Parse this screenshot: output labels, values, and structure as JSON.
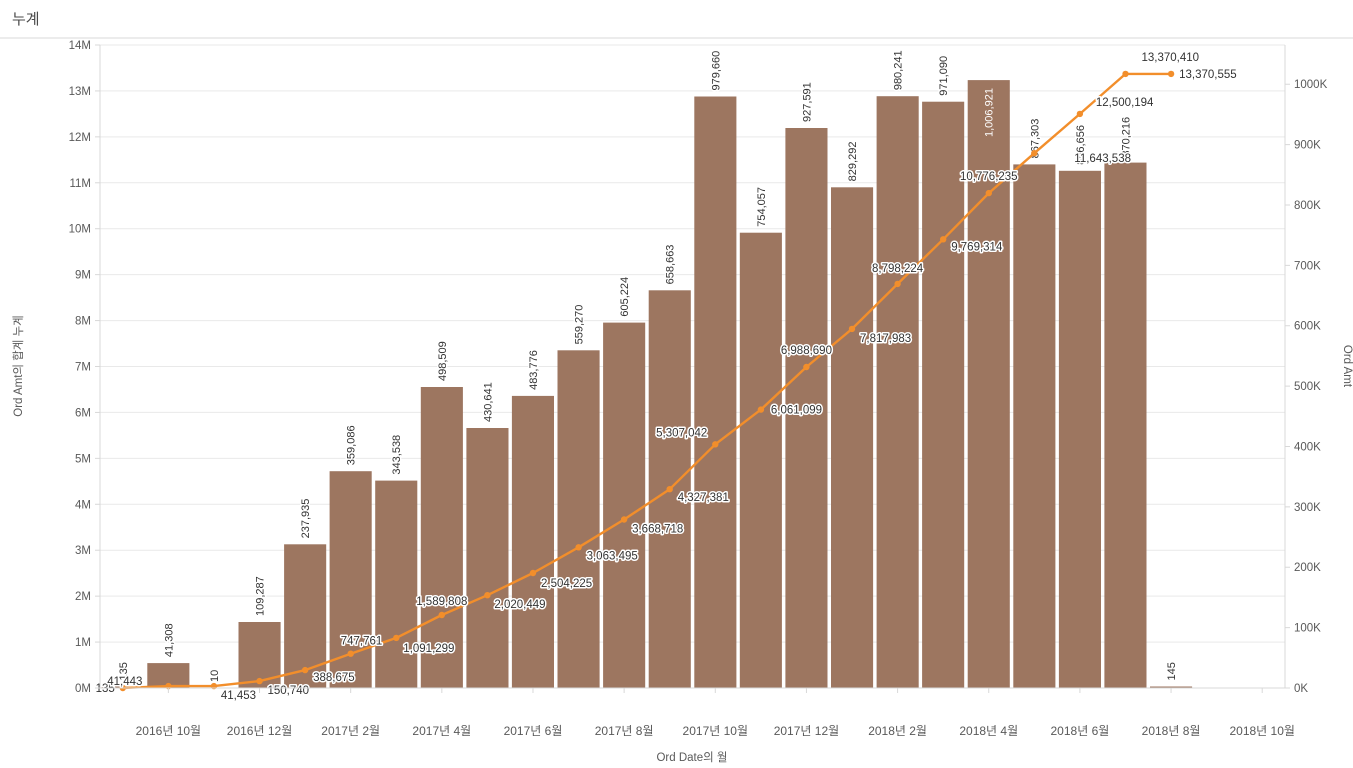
{
  "title": "누계",
  "chart_data": {
    "type": "combo",
    "title": "누계",
    "grid": true,
    "legend": false,
    "x_axis": {
      "label": "Ord Date의 월",
      "tick_labels": [
        "2016년 10월",
        "2016년 12월",
        "2017년 2월",
        "2017년 4월",
        "2017년 6월",
        "2017년 8월",
        "2017년 10월",
        "2017년 12월",
        "2018년 2월",
        "2018년 4월",
        "2018년 6월",
        "2018년 8월",
        "2018년 10월"
      ],
      "tick_month_indices": [
        1,
        3,
        5,
        7,
        9,
        11,
        13,
        15,
        17,
        19,
        21,
        23,
        25
      ],
      "total_month_slots": 26
    },
    "left_axis": {
      "label": "Ord Amt의 합계 누계",
      "tick_labels": [
        "0M",
        "1M",
        "2M",
        "3M",
        "4M",
        "5M",
        "6M",
        "7M",
        "8M",
        "9M",
        "10M",
        "11M",
        "12M",
        "13M",
        "14M"
      ],
      "min": 0,
      "max": 14000000,
      "tick_step": 1000000
    },
    "right_axis": {
      "label": "Ord Amt",
      "tick_labels": [
        "0K",
        "100K",
        "200K",
        "300K",
        "400K",
        "500K",
        "600K",
        "700K",
        "800K",
        "900K",
        "1000K"
      ],
      "min": 0,
      "tick_step": 100000,
      "scale_max": 1065000
    },
    "series": [
      {
        "name": "Ord Amt",
        "type": "bar",
        "axis": "right",
        "color": "#9D7660",
        "values": [
          135,
          41308,
          10,
          109287,
          237935,
          359086,
          343538,
          498509,
          430641,
          483776,
          559270,
          605224,
          658663,
          979660,
          754057,
          927591,
          829292,
          980241,
          971090,
          1006921,
          867303,
          856656,
          870216,
          145
        ]
      },
      {
        "name": "Ord Amt의 합계 누계",
        "type": "line",
        "axis": "left",
        "color": "#F28E2B",
        "values": [
          135,
          41443,
          41453,
          150740,
          388675,
          747761,
          1091299,
          1589808,
          2020449,
          2504225,
          3063495,
          3668718,
          4327381,
          5307042,
          6061099,
          6988690,
          7817983,
          8798224,
          9769314,
          10776235,
          11643538,
          12500194,
          13370410,
          13370555
        ]
      }
    ],
    "colors": {
      "bar": "#9D7660",
      "line": "#F28E2B",
      "grid": "#e9e9e9",
      "axis_text": "#595959",
      "value_label": "#333333",
      "value_label_inside": "#ffffff"
    }
  }
}
